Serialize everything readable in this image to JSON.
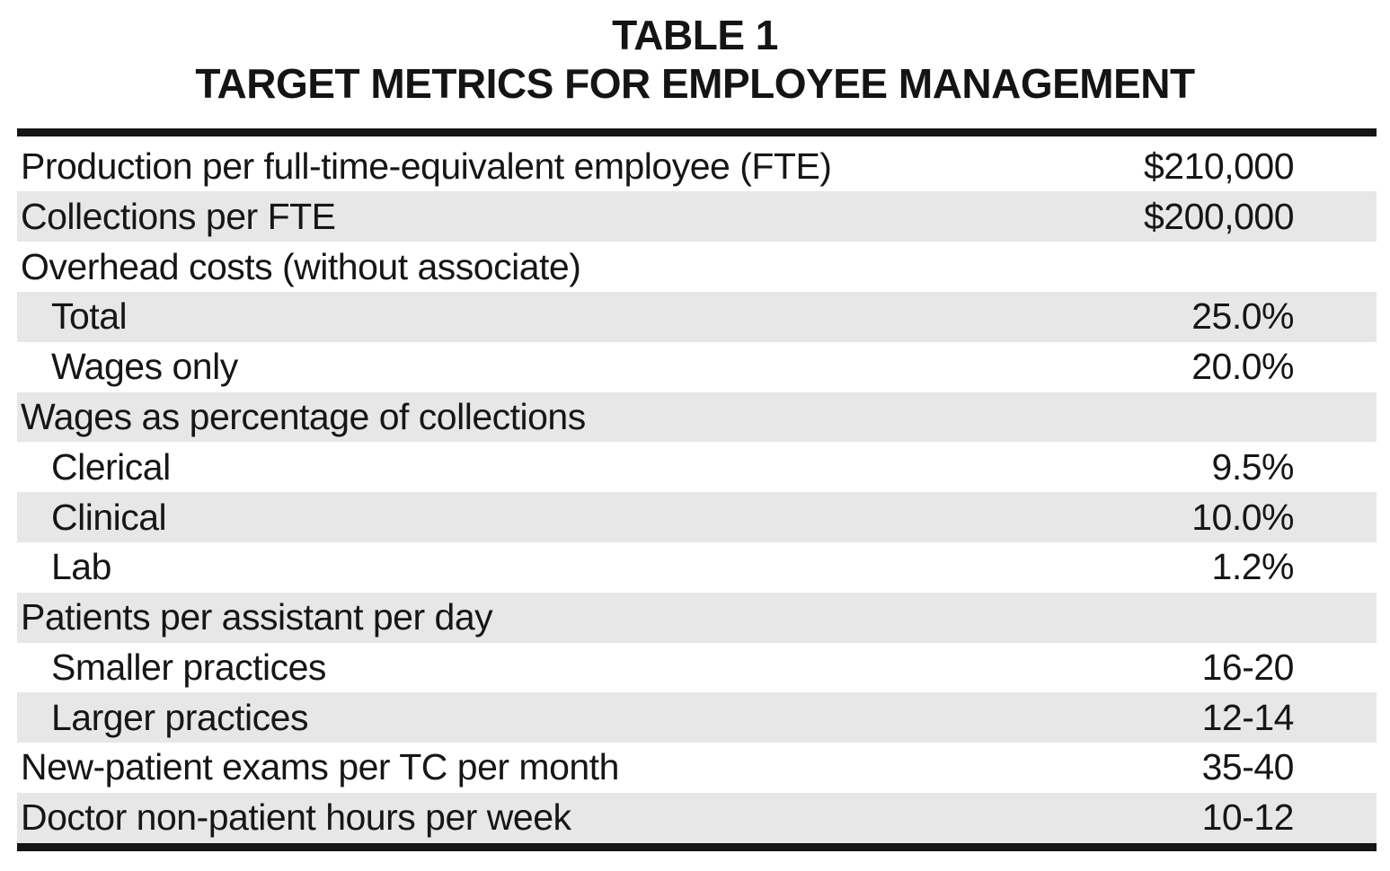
{
  "title": {
    "line1": "TABLE 1",
    "line2": "TARGET METRICS FOR EMPLOYEE MANAGEMENT"
  },
  "colors": {
    "row_shade": "#e7e7e7",
    "rule": "#151515",
    "text": "#161616",
    "background": "#ffffff"
  },
  "table": {
    "rows": [
      {
        "label": "Production per full-time-equivalent employee (FTE)",
        "value": "$210,000",
        "indent": false,
        "shaded": false,
        "section_header": false
      },
      {
        "label": "Collections per FTE",
        "value": "$200,000",
        "indent": false,
        "shaded": true,
        "section_header": false
      },
      {
        "label": "Overhead costs (without associate)",
        "value": "",
        "indent": false,
        "shaded": false,
        "section_header": true
      },
      {
        "label": "Total",
        "value": "25.0%",
        "indent": true,
        "shaded": true,
        "section_header": false
      },
      {
        "label": "Wages only",
        "value": "20.0%",
        "indent": true,
        "shaded": false,
        "section_header": false
      },
      {
        "label": "Wages as percentage of collections",
        "value": "",
        "indent": false,
        "shaded": true,
        "section_header": true
      },
      {
        "label": "Clerical",
        "value": "9.5%",
        "indent": true,
        "shaded": false,
        "section_header": false
      },
      {
        "label": "Clinical",
        "value": "10.0%",
        "indent": true,
        "shaded": true,
        "section_header": false
      },
      {
        "label": "Lab",
        "value": "1.2%",
        "indent": true,
        "shaded": false,
        "section_header": false
      },
      {
        "label": "Patients per assistant per day",
        "value": "",
        "indent": false,
        "shaded": true,
        "section_header": true
      },
      {
        "label": "Smaller practices",
        "value": "16-20",
        "indent": true,
        "shaded": false,
        "section_header": false
      },
      {
        "label": "Larger practices",
        "value": "12-14",
        "indent": true,
        "shaded": true,
        "section_header": false
      },
      {
        "label": "New-patient exams per TC per month",
        "value": "35-40",
        "indent": false,
        "shaded": false,
        "section_header": false
      },
      {
        "label": "Doctor non-patient hours per week",
        "value": "10-12",
        "indent": false,
        "shaded": true,
        "section_header": false
      }
    ]
  }
}
